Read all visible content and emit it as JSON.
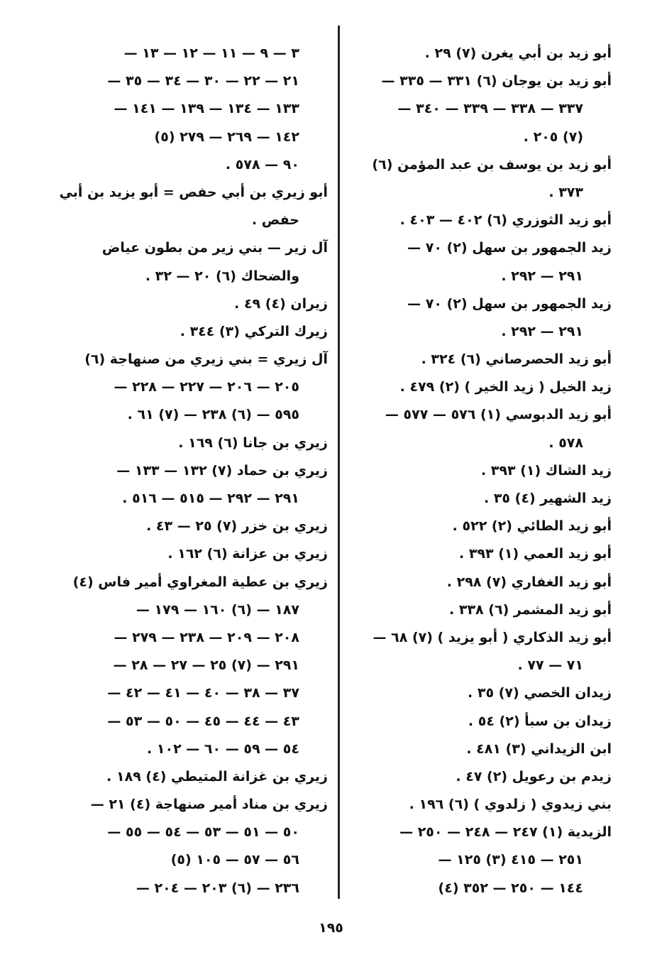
{
  "right_column": [
    "أبو زيد بن أبي يغرن (٧) ٢٩ .",
    "أبو زيد بن يوجان (٦) ٣٣١ — ٣٣٥ —",
    "٣٣٧ — ٣٣٨ — ٣٣٩ — ٣٤٠ —",
    "(٧) ٢٠٥ .",
    "أبو زيد بن يوسف بن عبد المؤمن (٦)",
    "٣٧٣ .",
    "أبو زيد الثوزري (٦) ٤٠٢ — ٤٠٣ .",
    "زيد الجمهور بن سهل (٢) ٧٠ —",
    "٢٩١ — ٢٩٢ .",
    "زيد الجمهور بن سهل (٢) ٧٠ —",
    "٢٩١ — ٢٩٢ .",
    "أبو زيد الحصرصاني (٦) ٣٢٤ .",
    "زيد الخيل ( زيد الخير ) (٢) ٤٧٩ .",
    "أبو زيد الدبوسي (١) ٥٧٦ — ٥٧٧ —",
    "٥٧٨ .",
    "زيد الشاك (١) ٣٩٣ .",
    "زيد الشهير (٤) ٣٥ .",
    "أبو زيد الطائي (٢) ٥٢٢ .",
    "أبو زيد العمي (١) ٣٩٣ .",
    "أبو زيد الغفاري (٧) ٢٩٨ .",
    "أبو زيد المشمر (٦) ٣٣٨ .",
    "أبو زيد الذكاري ( أبو يزيد ) (٧) ٦٨ —",
    "٧١ — ٧٧ .",
    "زيدان الخصي (٧) ٣٥ .",
    "زيدان بن سبأ (٢) ٥٤ .",
    "ابن الزيداني (٣) ٤٨١ .",
    "زيدم بن رعويل (٢) ٤٧ .",
    "بني زيدوي ( زلدوي ) (٦) ١٩٦ .",
    "الزيدية (١) ٢٤٧ — ٢٤٨ — ٢٥٠ —",
    "٢٥١ — ٤١٥ (٣) ١٢٥ —",
    "١٤٤ — ٢٥٠ — ٣٥٢ (٤)"
  ],
  "left_column": [
    "٣ — ٩ — ١١ — ١٢ — ١٣ —",
    "٢١ — ٢٢ — ٣٠ — ٣٤ — ٣٥ —",
    "١٣٣ — ١٣٤ — ١٣٩ — ١٤١ —",
    "١٤٢ — ٢٦٩ — ٢٧٩ (٥)",
    "٩٠ — ٥٧٨ .",
    "أبو زيري بن أبي حفص = أبو يزيد بن أبي",
    "حفص .",
    "آل زير — بني زير من بطون عياض",
    "والضحاك (٦) ٢٠ — ٣٢ .",
    "زيران (٤) ٤٩ .",
    "زيرك التركي (٣) ٣٤٤ .",
    "آل زيري = بني زيري من صنهاجة (٦)",
    "٢٠٥ — ٢٠٦ — ٢٢٧ — ٢٢٨ —",
    "٥٩٥ — (٦) ٢٣٨ — (٧) ٦١ .",
    "زيري بن جانا (٦) ١٦٩ .",
    "زيري بن حماد (٧) ١٣٢ — ١٣٣ —",
    "٢٩١ — ٢٩٢ — ٥١٥ — ٥١٦ .",
    "زيري بن خزر (٧) ٢٥ — ٤٣ .",
    "زيري بن عزانة (٦) ١٦٢ .",
    "زيري بن عطية المغراوي أمير فاس (٤)",
    "١٨٧ — (٦) ١٦٠ — ١٧٩ —",
    "٢٠٨ — ٢٠٩ — ٢٣٨ — ٢٧٩ —",
    "٢٩١ — (٧) ٢٥ — ٢٧ — ٢٨ —",
    "٣٧ — ٣٨ — ٤٠ — ٤١ — ٤٢ —",
    "٤٣ — ٤٤ — ٤٥ — ٥٠ — ٥٣ —",
    "٥٤ — ٥٩ — ٦٠ — ١٠٢ .",
    "زيري بن غزانة المتيطي (٤) ١٨٩ .",
    "زيري بن مناد أمير صنهاجة (٤) ٢١ —",
    "٥٠ — ٥١ — ٥٣ — ٥٤ — ٥٥ —",
    "٥٦ — ٥٧ — ١٠٥ (٥)",
    "٢٣٦ — (٦) ٢٠٣ — ٢٠٤ —"
  ],
  "page_number": "١٩٥"
}
